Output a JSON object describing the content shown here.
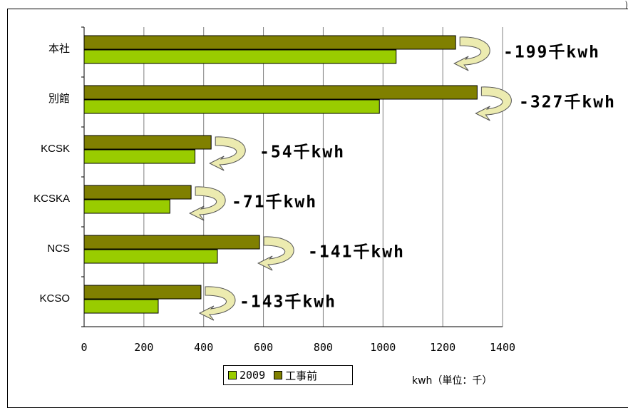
{
  "corner_mark": ")",
  "chart_data": {
    "type": "bar",
    "orientation": "horizontal",
    "categories": [
      "本社",
      "別館",
      "KCSK",
      "KCSKA",
      "NCS",
      "KCSO"
    ],
    "series": [
      {
        "name": "工事前",
        "values": [
          1243,
          1315,
          425,
          358,
          587,
          391
        ],
        "color": "#808000"
      },
      {
        "name": "2009",
        "values": [
          1044,
          988,
          371,
          287,
          446,
          248
        ],
        "color": "#99cc00"
      }
    ],
    "annotations": [
      "-199千kwh",
      "-327千kwh",
      "-54千kwh",
      "-71千kwh",
      "-141千kwh",
      "-143千kwh"
    ],
    "xticks": [
      "0",
      "200",
      "400",
      "600",
      "800",
      "1000",
      "1200",
      "1400"
    ],
    "xlim": [
      0,
      1400
    ],
    "grid": true,
    "legend": {
      "items": [
        "2009",
        "工事前"
      ],
      "placement": "bottom"
    },
    "unit_label": "kwh（単位：千）",
    "title": "",
    "xlabel": "",
    "ylabel": ""
  }
}
